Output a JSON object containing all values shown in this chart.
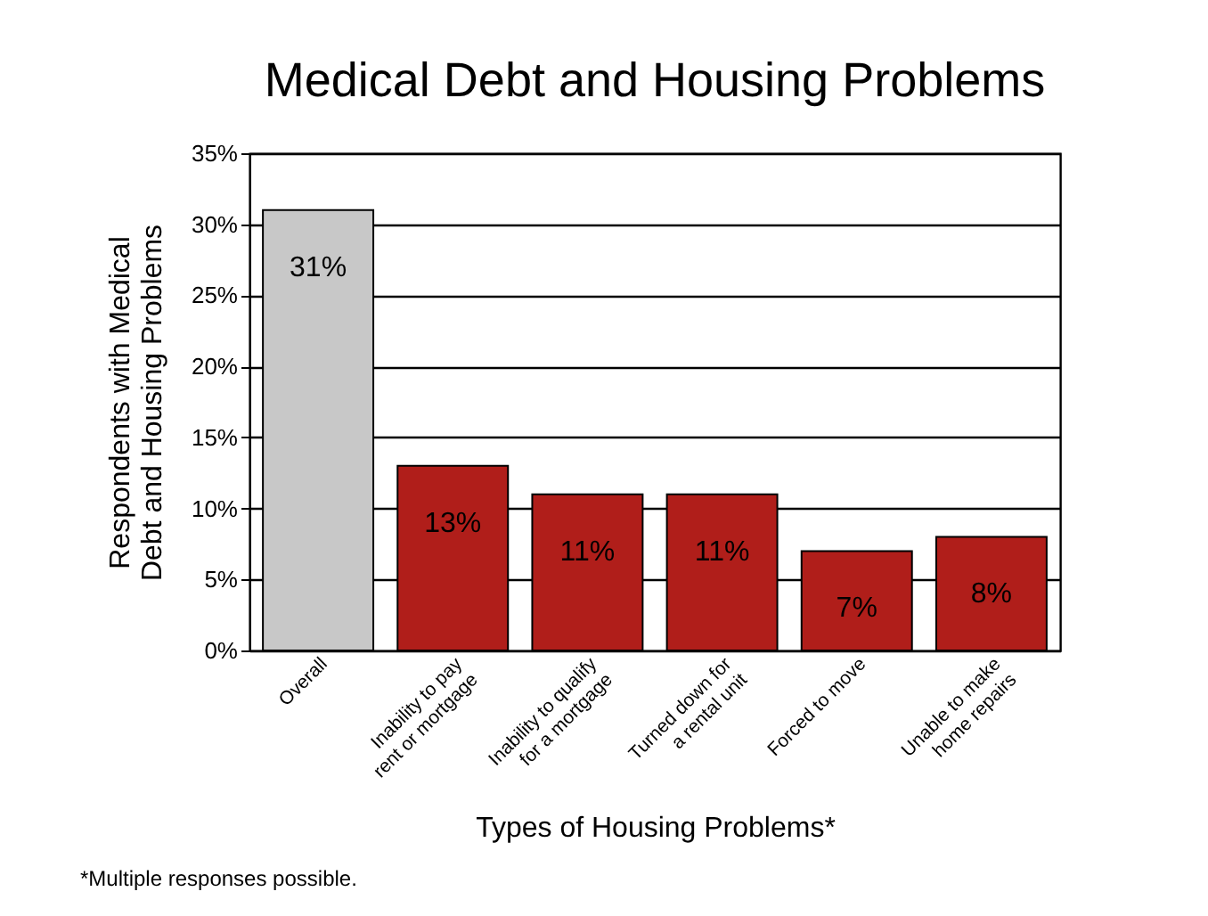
{
  "chart_data": {
    "type": "bar",
    "title": "Medical Debt and Housing Problems",
    "xlabel": "Types of Housing Problems*",
    "ylabel": "Respondents with Medical Debt and Housing Problems",
    "categories": [
      "Overall",
      "Inability to pay rent or mortgage",
      "Inability to qualify for a mortgage",
      "Turned down for a rental unit",
      "Forced to move",
      "Unable to make home repairs"
    ],
    "values": [
      31,
      13,
      11,
      11,
      7,
      8
    ],
    "colors": [
      "#c8c8c8",
      "#b01e1a",
      "#b01e1a",
      "#b01e1a",
      "#b01e1a",
      "#b01e1a"
    ],
    "value_labels": [
      "31%",
      "13%",
      "11%",
      "11%",
      "7%",
      "8%"
    ],
    "ylim": [
      0,
      35
    ],
    "yticks": [
      {
        "value": 0,
        "label": "0%"
      },
      {
        "value": 5,
        "label": "5%"
      },
      {
        "value": 10,
        "label": "10%"
      },
      {
        "value": 15,
        "label": "15%"
      },
      {
        "value": 20,
        "label": "20%"
      },
      {
        "value": 25,
        "label": "25%"
      },
      {
        "value": 30,
        "label": "30%"
      },
      {
        "value": 35,
        "label": "35%"
      }
    ],
    "grid": "y",
    "annotations": [
      "*Multiple responses possible."
    ]
  }
}
